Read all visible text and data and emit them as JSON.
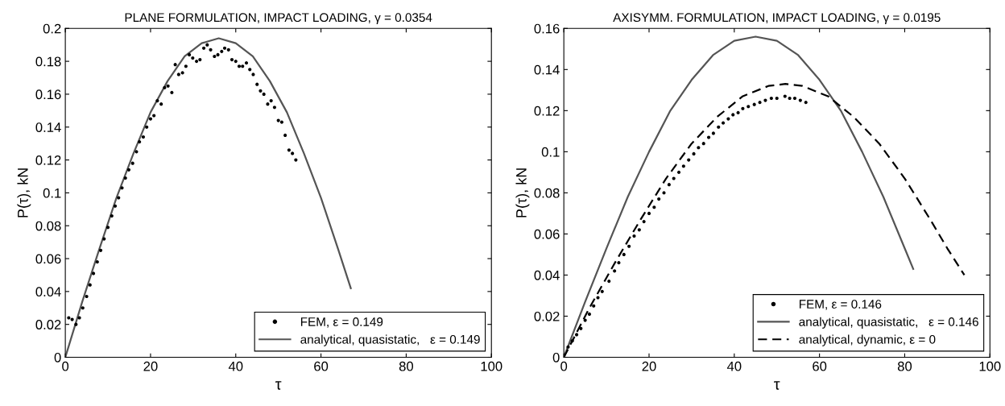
{
  "chart_data": [
    {
      "type": "line",
      "title": "PLANE FORMULATION, IMPACT LOADING, γ = 0.0354",
      "xlabel": "τ",
      "ylabel": "P(τ), kN",
      "xlim": [
        0,
        100
      ],
      "ylim": [
        0,
        0.2
      ],
      "xticks": [
        0,
        20,
        40,
        60,
        80,
        100
      ],
      "yticks": [
        0,
        0.02,
        0.04,
        0.06,
        0.08,
        0.1,
        0.12,
        0.14,
        0.16,
        0.18,
        0.2
      ],
      "grid": false,
      "legend": "bottom right",
      "series": [
        {
          "name": "FEM, ε = 0.149",
          "type": "scatter",
          "marker": "circle",
          "color": "#000000",
          "x": [
            0.8,
            1.6,
            2.5,
            3.3,
            4.1,
            5.0,
            5.8,
            6.6,
            7.5,
            8.3,
            9.1,
            10.0,
            10.9,
            11.7,
            12.5,
            13.3,
            14.1,
            14.9,
            15.8,
            16.7,
            17.4,
            18.3,
            19.1,
            20.0,
            20.8,
            21.6,
            22.5,
            23.3,
            24.1,
            25.0,
            25.8,
            26.6,
            27.5,
            28.3,
            29.1,
            29.9,
            30.8,
            31.6,
            32.5,
            33.3,
            34.1,
            35.0,
            35.8,
            36.7,
            37.4,
            38.3,
            39.1,
            40.0,
            40.8,
            41.6,
            42.5,
            43.3,
            44.1,
            45.0,
            45.8,
            46.6,
            47.5,
            48.3,
            49.1,
            50.0,
            50.8,
            51.6,
            52.5,
            53.3,
            54.1
          ],
          "values": [
            0.024,
            0.023,
            0.02,
            0.024,
            0.03,
            0.037,
            0.044,
            0.051,
            0.058,
            0.065,
            0.072,
            0.079,
            0.086,
            0.092,
            0.097,
            0.103,
            0.109,
            0.114,
            0.118,
            0.125,
            0.131,
            0.134,
            0.14,
            0.145,
            0.147,
            0.156,
            0.154,
            0.164,
            0.165,
            0.161,
            0.178,
            0.172,
            0.173,
            0.177,
            0.184,
            0.182,
            0.18,
            0.181,
            0.188,
            0.19,
            0.187,
            0.183,
            0.184,
            0.186,
            0.188,
            0.187,
            0.181,
            0.18,
            0.177,
            0.177,
            0.179,
            0.175,
            0.172,
            0.166,
            0.162,
            0.16,
            0.154,
            0.156,
            0.152,
            0.144,
            0.143,
            0.135,
            0.126,
            0.124,
            0.12
          ]
        },
        {
          "name": "analytical, quasistatic,   ε = 0.149",
          "line_style": "solid",
          "color": "#555555",
          "x": [
            0,
            4,
            8,
            12,
            16,
            20,
            24,
            28,
            32,
            36,
            40,
            44,
            48,
            52,
            56,
            60,
            64,
            67
          ],
          "values": [
            0,
            0.034,
            0.066,
            0.097,
            0.124,
            0.149,
            0.168,
            0.183,
            0.191,
            0.194,
            0.191,
            0.183,
            0.168,
            0.149,
            0.124,
            0.097,
            0.066,
            0.042
          ]
        }
      ]
    },
    {
      "type": "line",
      "title": "AXISYMM. FORMULATION, IMPACT LOADING, γ = 0.0195",
      "xlabel": "τ",
      "ylabel": "P(τ), kN",
      "xlim": [
        0,
        100
      ],
      "ylim": [
        0,
        0.16
      ],
      "xticks": [
        0,
        20,
        40,
        60,
        80,
        100
      ],
      "yticks": [
        0,
        0.02,
        0.04,
        0.06,
        0.08,
        0.1,
        0.12,
        0.14,
        0.16
      ],
      "grid": false,
      "legend": "bottom right",
      "series": [
        {
          "name": "FEM, ε = 0.146",
          "type": "scatter",
          "marker": "circle",
          "color": "#000000",
          "x": [
            1,
            2,
            3,
            4,
            5,
            6,
            7,
            8,
            9,
            10.6,
            11.9,
            12.9,
            14.1,
            15.3,
            16.5,
            17.7,
            18.8,
            20,
            21.2,
            22.3,
            23.5,
            24.7,
            25.8,
            27,
            28.1,
            29.3,
            30.5,
            31.6,
            32.8,
            34,
            35.1,
            36.3,
            37.4,
            38.6,
            39.7,
            40.9,
            42,
            43.3,
            44.7,
            46,
            47.3,
            48.7,
            50,
            51.9,
            53,
            54.2,
            55.5,
            56.8
          ],
          "values": [
            0.005,
            0.008,
            0.011,
            0.014,
            0.018,
            0.021,
            0.025,
            0.029,
            0.032,
            0.037,
            0.042,
            0.046,
            0.05,
            0.054,
            0.059,
            0.062,
            0.066,
            0.07,
            0.073,
            0.077,
            0.08,
            0.084,
            0.087,
            0.09,
            0.093,
            0.096,
            0.099,
            0.102,
            0.104,
            0.107,
            0.109,
            0.112,
            0.114,
            0.116,
            0.118,
            0.119,
            0.121,
            0.122,
            0.123,
            0.124,
            0.125,
            0.126,
            0.126,
            0.127,
            0.126,
            0.126,
            0.125,
            0.124
          ]
        },
        {
          "name": "analytical, quasistatic,   ε = 0.146",
          "line_style": "solid",
          "color": "#555555",
          "x": [
            0,
            5,
            10,
            15,
            20,
            25,
            30,
            35,
            40,
            45,
            50,
            55,
            60,
            65,
            70,
            75,
            80,
            82
          ],
          "values": [
            0,
            0.027,
            0.053,
            0.078,
            0.1,
            0.12,
            0.135,
            0.147,
            0.154,
            0.156,
            0.154,
            0.147,
            0.135,
            0.12,
            0.1,
            0.078,
            0.053,
            0.043
          ]
        },
        {
          "name": "analytical, dynamic, ε = 0",
          "line_style": "dashed",
          "color": "#000000",
          "x": [
            0,
            6,
            12,
            18,
            24,
            30,
            36,
            42,
            48,
            52,
            56,
            62,
            68,
            74,
            80,
            86,
            90,
            94
          ],
          "values": [
            0,
            0.024,
            0.046,
            0.067,
            0.087,
            0.104,
            0.117,
            0.127,
            0.132,
            0.133,
            0.132,
            0.127,
            0.117,
            0.104,
            0.087,
            0.067,
            0.053,
            0.04
          ]
        }
      ]
    }
  ]
}
